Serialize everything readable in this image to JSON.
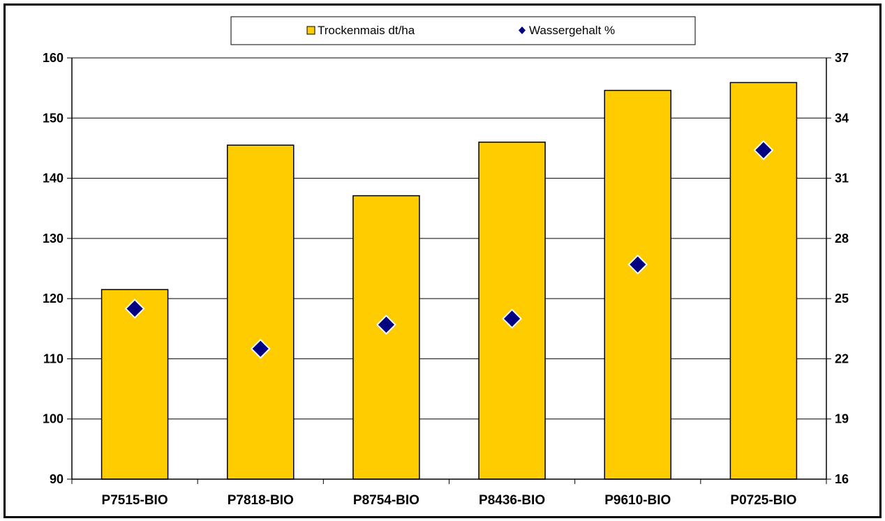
{
  "chart_data": {
    "type": "bar",
    "categories": [
      "P7515-BIO",
      "P7818-BIO",
      "P8754-BIO",
      "P8436-BIO",
      "P9610-BIO",
      "P0725-BIO"
    ],
    "series": [
      {
        "name": "Trockenmais dt/ha",
        "type": "bar",
        "axis": "left",
        "values": [
          121.5,
          145.5,
          137.1,
          146.0,
          154.6,
          155.9
        ],
        "color": "#FFCC00"
      },
      {
        "name": "Wassergehalt %",
        "type": "scatter",
        "axis": "right",
        "values": [
          24.5,
          22.5,
          23.7,
          24.0,
          26.7,
          32.4
        ],
        "color": "#000080"
      }
    ],
    "y_left": {
      "ylim": [
        90,
        160
      ],
      "ticks": [
        90,
        100,
        110,
        120,
        130,
        140,
        150,
        160
      ]
    },
    "y_right": {
      "ylim": [
        16,
        37
      ],
      "ticks": [
        16,
        19,
        22,
        25,
        28,
        31,
        34,
        37
      ]
    },
    "grid": true,
    "legend": {
      "position": "top-center",
      "items": [
        "Trockenmais dt/ha",
        "Wassergehalt %"
      ]
    },
    "title": "",
    "xlabel": "",
    "ylabel": ""
  }
}
